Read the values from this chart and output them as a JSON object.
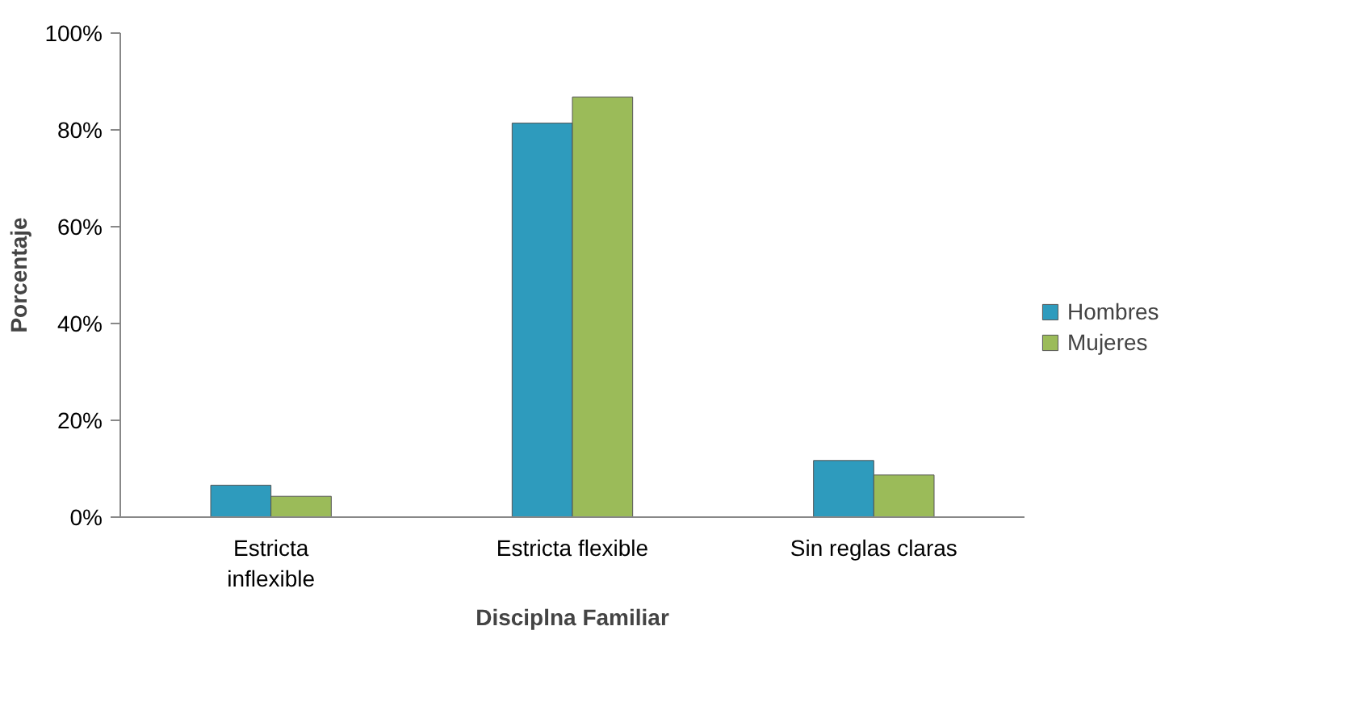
{
  "chart_data": {
    "type": "bar",
    "xlabel": "Disciplna Familiar",
    "ylabel": "Porcentaje",
    "categories": [
      "Estricta inflexible",
      "Estricta flexible",
      "Sin reglas claras"
    ],
    "series": [
      {
        "name": "Hombres",
        "color": "#2e9bbd",
        "values": [
          6.6,
          81.4,
          11.7
        ]
      },
      {
        "name": "Mujeres",
        "color": "#9bbb59",
        "values": [
          4.3,
          86.8,
          8.7
        ]
      }
    ],
    "ylim": [
      0,
      100
    ],
    "yticks": [
      {
        "value": 0,
        "label": "0%"
      },
      {
        "value": 20,
        "label": "20%"
      },
      {
        "value": 40,
        "label": "40%"
      },
      {
        "value": 60,
        "label": "60%"
      },
      {
        "value": 80,
        "label": "80%"
      },
      {
        "value": 100,
        "label": "100%"
      }
    ],
    "grid": false,
    "legend": "right"
  }
}
